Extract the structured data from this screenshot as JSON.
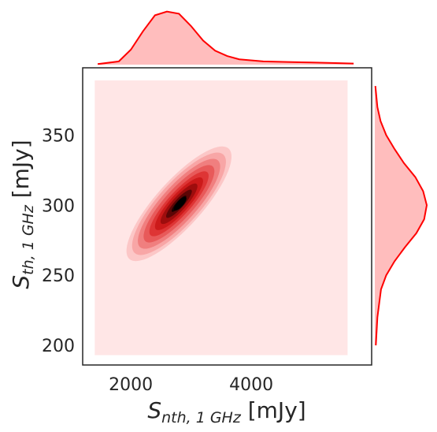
{
  "chart_data": {
    "type": "jointplot-kde",
    "xlabel": {
      "main": "S",
      "sub": "nth, 1 GHz",
      "unit": "[mJy]"
    },
    "ylabel": {
      "main": "S",
      "sub": "th, 1 GHz",
      "unit": "[mJy]"
    },
    "xlim": [
      1200,
      6000
    ],
    "ylim": [
      186,
      398
    ],
    "xticks": [
      2000,
      4000
    ],
    "xtick_labels": [
      "2000",
      "4000"
    ],
    "yticks": [
      200,
      250,
      300,
      350
    ],
    "ytick_labels": [
      "200",
      "250",
      "300",
      "350"
    ],
    "grid": false,
    "colors": {
      "line": "#ff0000",
      "fill": "#ffbdbd",
      "background_fill": "#ffe6e6",
      "darkest": "#000000"
    },
    "joint_background": {
      "x": [
        1400,
        5600
      ],
      "y": [
        193,
        389
      ]
    },
    "joint_kde": {
      "center": [
        2800,
        301
      ],
      "peak_point": [
        2820,
        301
      ],
      "levels": [
        {
          "color": "#fcc7c7",
          "sx": 560,
          "sy": 30
        },
        {
          "color": "#f8a6a6",
          "sx": 500,
          "sy": 27
        },
        {
          "color": "#f07f7f",
          "sx": 440,
          "sy": 23
        },
        {
          "color": "#e85a5a",
          "sx": 380,
          "sy": 19
        },
        {
          "color": "#de3535",
          "sx": 320,
          "sy": 15
        },
        {
          "color": "#cc1a1a",
          "sx": 260,
          "sy": 12
        },
        {
          "color": "#9e0d0d",
          "sx": 200,
          "sy": 9
        },
        {
          "color": "#5c0505",
          "sx": 140,
          "sy": 6
        },
        {
          "color": "#1a0000",
          "sx": 80,
          "sy": 3.5
        }
      ]
    },
    "marginal_x": {
      "x": [
        1450,
        1800,
        2000,
        2200,
        2400,
        2600,
        2800,
        3000,
        3200,
        3400,
        3600,
        3800,
        4200,
        4600,
        5000,
        5400,
        5700
      ],
      "density": [
        0.01,
        0.06,
        0.28,
        0.62,
        0.92,
        0.99,
        0.95,
        0.72,
        0.45,
        0.26,
        0.16,
        0.1,
        0.06,
        0.05,
        0.04,
        0.03,
        0.02
      ]
    },
    "marginal_y": {
      "y": [
        200,
        220,
        240,
        250,
        260,
        270,
        280,
        290,
        300,
        310,
        320,
        330,
        340,
        350,
        360,
        370,
        385
      ],
      "density": [
        0.02,
        0.05,
        0.12,
        0.22,
        0.38,
        0.58,
        0.8,
        0.95,
        1.0,
        0.93,
        0.78,
        0.56,
        0.38,
        0.22,
        0.11,
        0.05,
        0.01
      ]
    }
  }
}
